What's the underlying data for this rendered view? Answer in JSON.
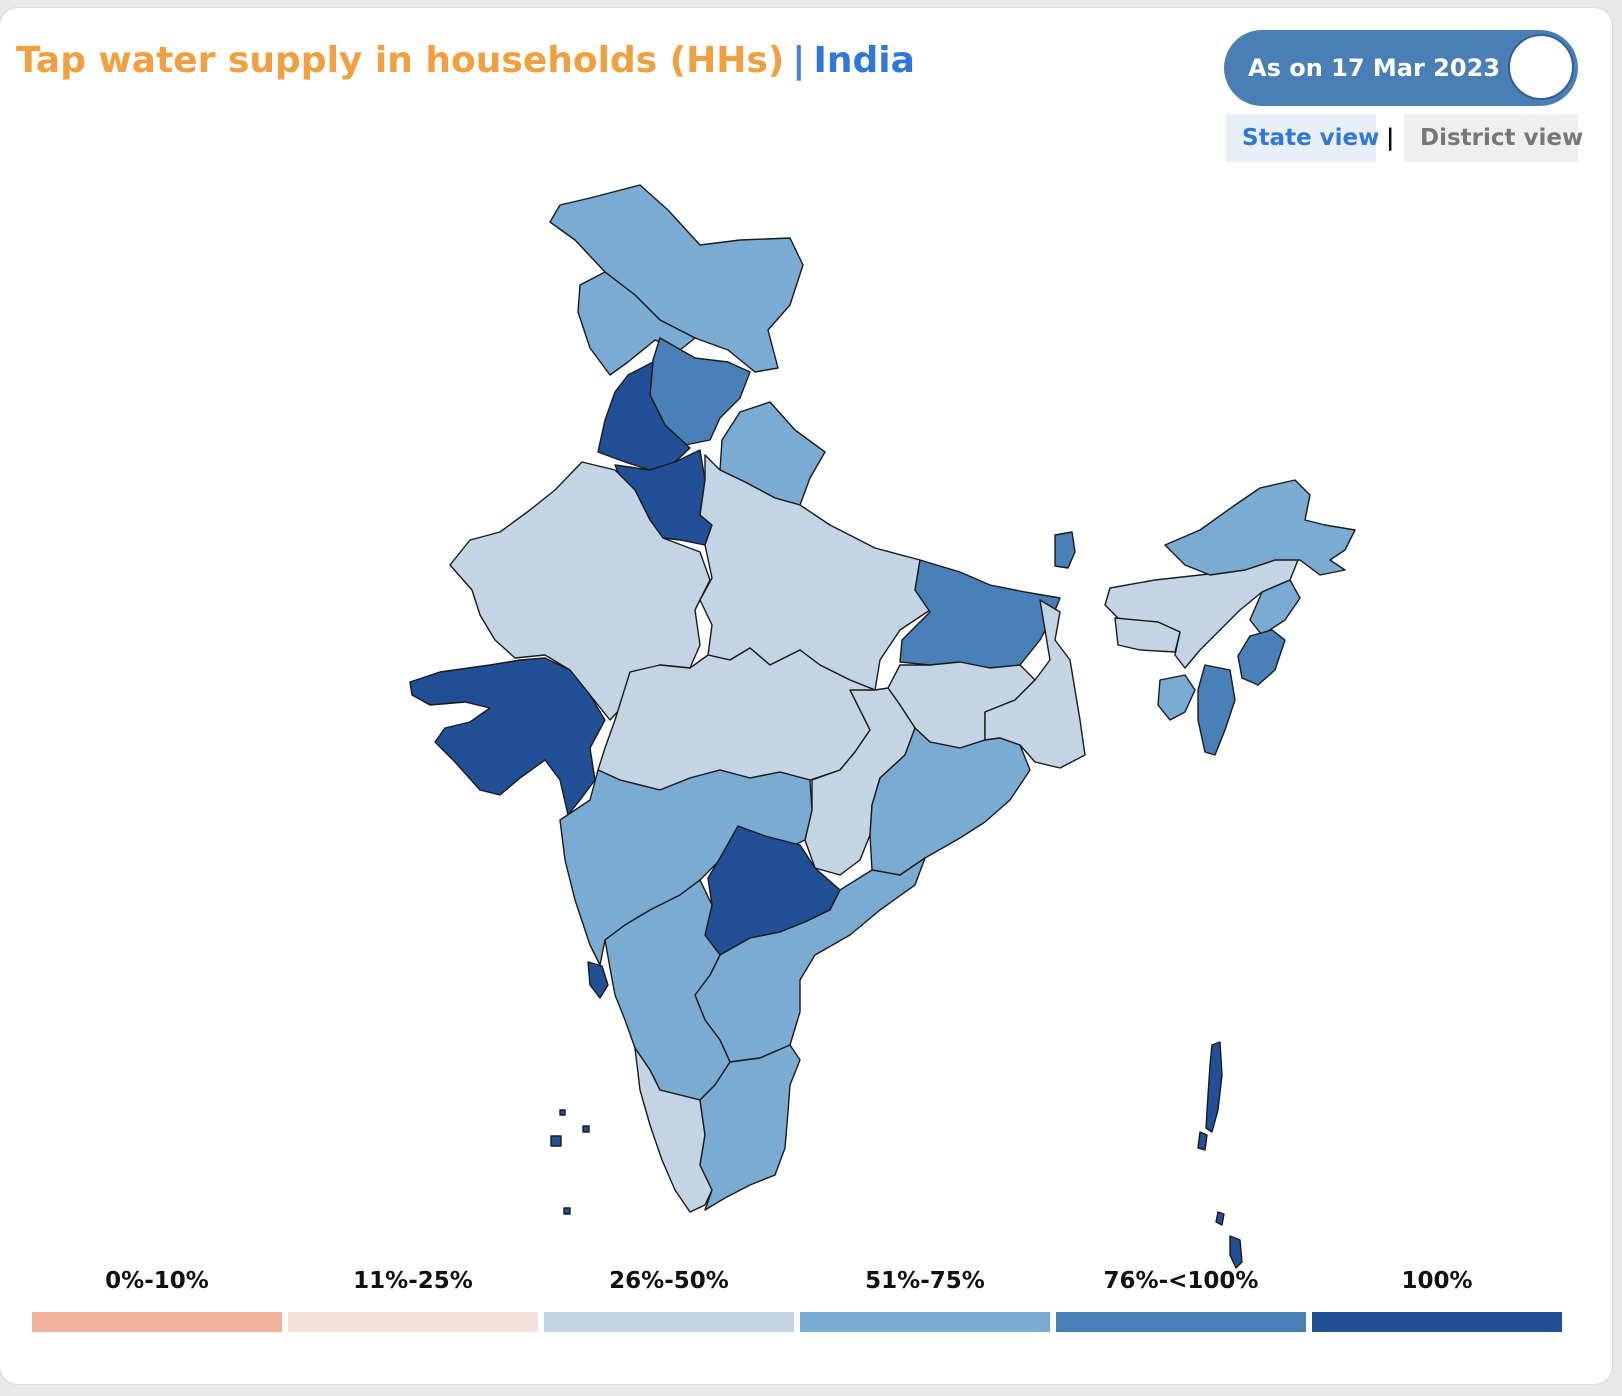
{
  "header": {
    "title": "Tap water supply in households (HHs)",
    "separator": "|",
    "region": "India"
  },
  "date_toggle": {
    "label": "As on 17 Mar 2023"
  },
  "view_switch": {
    "state_label": "State view",
    "separator": "|",
    "district_label": "District view",
    "active": "State view"
  },
  "legend": {
    "items": [
      {
        "label": "0%-10%",
        "color": "#f0b29a"
      },
      {
        "label": "11%-25%",
        "color": "#f5e2da"
      },
      {
        "label": "26%-50%",
        "color": "#c3d5e5"
      },
      {
        "label": "51%-75%",
        "color": "#7aabd3"
      },
      {
        "label": "76%-<100%",
        "color": "#4a80b8"
      },
      {
        "label": "100%",
        "color": "#225096"
      }
    ]
  },
  "map": {
    "regions": [
      {
        "name": "Jammu and Kashmir",
        "category": "51%-75%"
      },
      {
        "name": "Ladakh",
        "category": "51%-75%"
      },
      {
        "name": "Himachal Pradesh",
        "category": "76%-<100%"
      },
      {
        "name": "Punjab",
        "category": "100%"
      },
      {
        "name": "Haryana",
        "category": "100%"
      },
      {
        "name": "Uttarakhand",
        "category": "51%-75%"
      },
      {
        "name": "Rajasthan",
        "category": "26%-50%"
      },
      {
        "name": "Uttar Pradesh",
        "category": "26%-50%"
      },
      {
        "name": "Bihar",
        "category": "76%-<100%"
      },
      {
        "name": "Gujarat",
        "category": "100%"
      },
      {
        "name": "Madhya Pradesh",
        "category": "26%-50%"
      },
      {
        "name": "Jharkhand",
        "category": "26%-50%"
      },
      {
        "name": "West Bengal",
        "category": "26%-50%"
      },
      {
        "name": "Chhattisgarh",
        "category": "26%-50%"
      },
      {
        "name": "Odisha",
        "category": "51%-75%"
      },
      {
        "name": "Maharashtra",
        "category": "51%-75%"
      },
      {
        "name": "Telangana",
        "category": "100%"
      },
      {
        "name": "Andhra Pradesh",
        "category": "51%-75%"
      },
      {
        "name": "Karnataka",
        "category": "51%-75%"
      },
      {
        "name": "Goa",
        "category": "100%"
      },
      {
        "name": "Kerala",
        "category": "26%-50%"
      },
      {
        "name": "Tamil Nadu",
        "category": "51%-75%"
      },
      {
        "name": "Sikkim",
        "category": "76%-<100%"
      },
      {
        "name": "Arunachal Pradesh",
        "category": "51%-75%"
      },
      {
        "name": "Assam",
        "category": "26%-50%"
      },
      {
        "name": "Meghalaya",
        "category": "26%-50%"
      },
      {
        "name": "Nagaland",
        "category": "51%-75%"
      },
      {
        "name": "Manipur",
        "category": "76%-<100%"
      },
      {
        "name": "Mizoram",
        "category": "76%-<100%"
      },
      {
        "name": "Tripura",
        "category": "51%-75%"
      },
      {
        "name": "Andaman and Nicobar Islands",
        "category": "100%"
      },
      {
        "name": "Lakshadweep",
        "category": "100%"
      }
    ]
  }
}
